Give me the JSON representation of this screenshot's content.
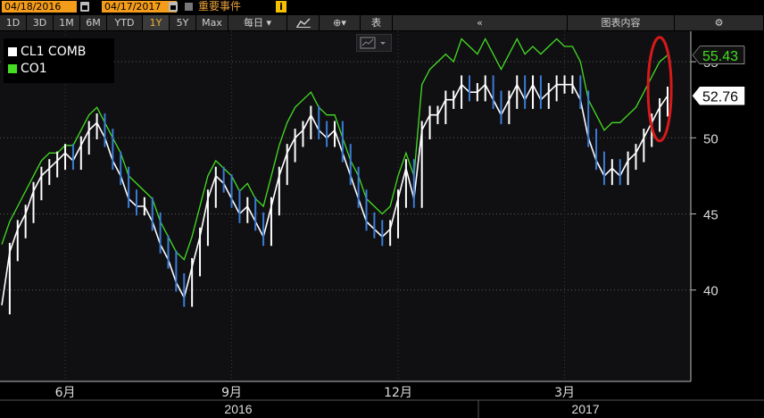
{
  "toolbar": {
    "start_date": "04/18/2016",
    "end_date": "04/17/2017",
    "events_label": "重要事件",
    "period_buttons": [
      "1D",
      "3D",
      "1M",
      "6M",
      "YTD",
      "1Y",
      "5Y",
      "Max"
    ],
    "active_period": "1Y",
    "frequency_label": "每日",
    "table_label": "表",
    "chart_contents_label": "图表内容",
    "icons": [
      "calendar-icon",
      "line-chart-icon",
      "candle-icon",
      "info-icon",
      "collapse-icon",
      "settings-icon"
    ]
  },
  "chart_data": {
    "type": "line",
    "x_ticks": [
      "6月",
      "9月",
      "12月",
      "3月"
    ],
    "year_labels": [
      "2016",
      "2017"
    ],
    "ylim": [
      34,
      57
    ],
    "y_ticks": [
      40,
      45,
      50,
      55
    ],
    "grid": true,
    "legend_position": "top-left",
    "last_values": {
      "CO1": "55.43",
      "CL1 COMB": "52.76"
    },
    "annotation": "red ellipse around latest prices",
    "series": [
      {
        "name": "CL1 COMB",
        "color": "#ffffff",
        "values": [
          39.0,
          42.5,
          44.0,
          45.0,
          46.5,
          47.5,
          48.0,
          48.5,
          49.0,
          48.5,
          49.5,
          50.5,
          51.0,
          50.0,
          48.5,
          47.5,
          46.0,
          45.5,
          45.5,
          44.5,
          43.0,
          42.0,
          40.5,
          39.5,
          41.5,
          43.5,
          46.0,
          47.5,
          47.0,
          46.0,
          45.0,
          45.5,
          44.5,
          43.5,
          45.5,
          47.5,
          49.0,
          50.0,
          50.5,
          51.5,
          50.5,
          50.0,
          50.5,
          49.0,
          47.5,
          46.0,
          44.5,
          44.0,
          43.5,
          44.0,
          46.0,
          48.0,
          46.0,
          50.5,
          51.5,
          51.5,
          52.5,
          52.5,
          53.5,
          53.0,
          53.0,
          53.5,
          52.5,
          51.5,
          52.5,
          53.5,
          52.5,
          53.5,
          52.5,
          53.0,
          53.5,
          53.5,
          53.5,
          52.5,
          50.0,
          48.5,
          47.5,
          48.0,
          47.5,
          48.5,
          49.0,
          50.0,
          51.0,
          52.0,
          52.76
        ]
      },
      {
        "name": "CO1",
        "color": "#44dd22",
        "values": [
          43.0,
          44.5,
          45.5,
          46.5,
          47.5,
          48.5,
          49.0,
          49.0,
          49.5,
          49.5,
          50.5,
          51.5,
          52.0,
          51.0,
          50.0,
          49.0,
          47.5,
          47.0,
          46.5,
          46.0,
          44.5,
          43.5,
          42.5,
          42.0,
          43.5,
          45.5,
          47.5,
          48.5,
          48.0,
          47.5,
          46.5,
          47.0,
          46.0,
          45.5,
          47.5,
          49.5,
          51.0,
          52.0,
          52.5,
          53.0,
          52.0,
          51.5,
          51.5,
          50.0,
          48.5,
          47.5,
          46.0,
          45.5,
          45.0,
          45.5,
          47.5,
          49.0,
          47.5,
          53.5,
          54.5,
          55.0,
          55.5,
          55.0,
          56.5,
          56.0,
          55.5,
          56.5,
          55.5,
          54.5,
          55.5,
          56.5,
          55.5,
          56.0,
          55.5,
          56.0,
          56.5,
          56.0,
          56.0,
          55.0,
          52.5,
          51.5,
          50.5,
          51.0,
          51.0,
          51.5,
          52.0,
          53.0,
          54.0,
          55.0,
          55.43
        ]
      }
    ]
  }
}
